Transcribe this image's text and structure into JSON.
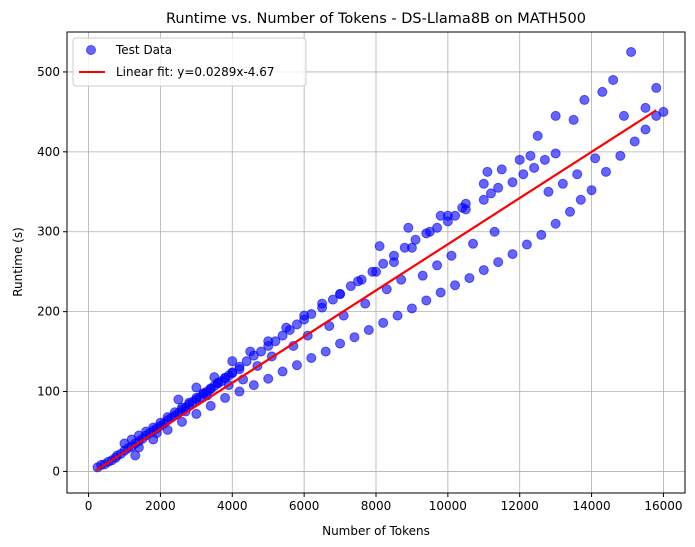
{
  "chart_data": {
    "type": "scatter",
    "title": "Runtime vs. Number of Tokens - DS-Llama8B on MATH500",
    "xlabel": "Number of Tokens",
    "ylabel": "Runtime (s)",
    "xlim": [
      -600,
      16600
    ],
    "ylim": [
      -27,
      550
    ],
    "xticks": [
      0,
      2000,
      4000,
      6000,
      8000,
      10000,
      12000,
      14000,
      16000
    ],
    "yticks": [
      0,
      100,
      200,
      300,
      400,
      500
    ],
    "grid": true,
    "legend_position": "top-left",
    "scatter_color": "#0000ff",
    "line_color": "#ff0000",
    "series": [
      {
        "name": "Test Data",
        "kind": "scatter",
        "points": [
          [
            250,
            5
          ],
          [
            350,
            8
          ],
          [
            450,
            9
          ],
          [
            550,
            12
          ],
          [
            650,
            14
          ],
          [
            750,
            17
          ],
          [
            800,
            20
          ],
          [
            900,
            22
          ],
          [
            1000,
            26
          ],
          [
            1100,
            29
          ],
          [
            1200,
            31
          ],
          [
            1300,
            35
          ],
          [
            1400,
            38
          ],
          [
            1500,
            41
          ],
          [
            1600,
            45
          ],
          [
            1700,
            48
          ],
          [
            1800,
            51
          ],
          [
            1900,
            54
          ],
          [
            2000,
            57
          ],
          [
            2100,
            60
          ],
          [
            2200,
            64
          ],
          [
            2300,
            67
          ],
          [
            2400,
            70
          ],
          [
            2500,
            73
          ],
          [
            2600,
            77
          ],
          [
            2700,
            80
          ],
          [
            2800,
            84
          ],
          [
            2900,
            87
          ],
          [
            3000,
            90
          ],
          [
            3100,
            93
          ],
          [
            3200,
            97
          ],
          [
            3300,
            100
          ],
          [
            3400,
            103
          ],
          [
            3500,
            107
          ],
          [
            3600,
            110
          ],
          [
            3700,
            113
          ],
          [
            3800,
            117
          ],
          [
            3900,
            120
          ],
          [
            4000,
            123
          ],
          [
            4200,
            128
          ],
          [
            1000,
            35
          ],
          [
            1200,
            40
          ],
          [
            1400,
            45
          ],
          [
            1600,
            50
          ],
          [
            1800,
            55
          ],
          [
            2000,
            61
          ],
          [
            2200,
            68
          ],
          [
            2400,
            74
          ],
          [
            2600,
            80
          ],
          [
            2800,
            86
          ],
          [
            3000,
            92
          ],
          [
            3200,
            98
          ],
          [
            3400,
            104
          ],
          [
            3600,
            111
          ],
          [
            3800,
            117
          ],
          [
            4000,
            124
          ],
          [
            4200,
            131
          ],
          [
            4400,
            138
          ],
          [
            4600,
            145
          ],
          [
            4800,
            150
          ],
          [
            5000,
            157
          ],
          [
            5200,
            163
          ],
          [
            5400,
            170
          ],
          [
            5600,
            177
          ],
          [
            5800,
            184
          ],
          [
            6000,
            190
          ],
          [
            6200,
            197
          ],
          [
            6500,
            205
          ],
          [
            6800,
            215
          ],
          [
            7000,
            222
          ],
          [
            7300,
            232
          ],
          [
            7600,
            240
          ],
          [
            7900,
            250
          ],
          [
            8200,
            260
          ],
          [
            8500,
            270
          ],
          [
            8800,
            280
          ],
          [
            9100,
            290
          ],
          [
            9400,
            298
          ],
          [
            9700,
            305
          ],
          [
            10000,
            313
          ],
          [
            10200,
            320
          ],
          [
            10500,
            328
          ],
          [
            11000,
            340
          ],
          [
            11200,
            348
          ],
          [
            11400,
            355
          ],
          [
            11800,
            362
          ],
          [
            12100,
            372
          ],
          [
            12400,
            380
          ],
          [
            12700,
            390
          ],
          [
            13000,
            398
          ],
          [
            1400,
            30
          ],
          [
            1800,
            40
          ],
          [
            2200,
            52
          ],
          [
            2600,
            62
          ],
          [
            3000,
            72
          ],
          [
            3400,
            82
          ],
          [
            3800,
            92
          ],
          [
            4200,
            100
          ],
          [
            4600,
            108
          ],
          [
            5000,
            116
          ],
          [
            5400,
            125
          ],
          [
            5800,
            133
          ],
          [
            6200,
            142
          ],
          [
            6600,
            150
          ],
          [
            7000,
            160
          ],
          [
            7400,
            168
          ],
          [
            7800,
            177
          ],
          [
            8200,
            186
          ],
          [
            8600,
            195
          ],
          [
            9000,
            204
          ],
          [
            9400,
            214
          ],
          [
            9800,
            224
          ],
          [
            10200,
            233
          ],
          [
            10600,
            242
          ],
          [
            11000,
            252
          ],
          [
            11400,
            262
          ],
          [
            11800,
            272
          ],
          [
            12200,
            284
          ],
          [
            12600,
            296
          ],
          [
            13000,
            310
          ],
          [
            13400,
            325
          ],
          [
            13700,
            340
          ],
          [
            14000,
            352
          ],
          [
            14400,
            375
          ],
          [
            14800,
            395
          ],
          [
            15200,
            413
          ],
          [
            15500,
            428
          ],
          [
            15800,
            445
          ],
          [
            16000,
            450
          ],
          [
            2500,
            90
          ],
          [
            3000,
            105
          ],
          [
            3500,
            118
          ],
          [
            4000,
            138
          ],
          [
            4500,
            150
          ],
          [
            5000,
            163
          ],
          [
            5500,
            180
          ],
          [
            6000,
            195
          ],
          [
            6500,
            210
          ],
          [
            7000,
            222
          ],
          [
            7500,
            238
          ],
          [
            8000,
            250
          ],
          [
            8500,
            262
          ],
          [
            9000,
            280
          ],
          [
            9500,
            300
          ],
          [
            10000,
            320
          ],
          [
            10500,
            335
          ],
          [
            11000,
            360
          ],
          [
            11500,
            378
          ],
          [
            12000,
            390
          ],
          [
            12500,
            420
          ],
          [
            13000,
            445
          ],
          [
            13500,
            440
          ],
          [
            13800,
            465
          ],
          [
            14300,
            475
          ],
          [
            14600,
            490
          ],
          [
            15100,
            525
          ],
          [
            15500,
            455
          ],
          [
            15800,
            480
          ],
          [
            14900,
            445
          ],
          [
            1300,
            20
          ],
          [
            1900,
            48
          ],
          [
            2700,
            75
          ],
          [
            3300,
            95
          ],
          [
            3900,
            108
          ],
          [
            4300,
            115
          ],
          [
            4700,
            132
          ],
          [
            5100,
            144
          ],
          [
            5700,
            157
          ],
          [
            6100,
            170
          ],
          [
            6700,
            182
          ],
          [
            7100,
            195
          ],
          [
            7700,
            210
          ],
          [
            8300,
            228
          ],
          [
            8700,
            240
          ],
          [
            9300,
            245
          ],
          [
            9700,
            258
          ],
          [
            10100,
            270
          ],
          [
            10700,
            285
          ],
          [
            11300,
            300
          ],
          [
            12800,
            350
          ],
          [
            13200,
            360
          ],
          [
            13600,
            372
          ],
          [
            14100,
            392
          ],
          [
            12300,
            395
          ],
          [
            11100,
            375
          ],
          [
            10400,
            330
          ],
          [
            9800,
            320
          ],
          [
            8900,
            305
          ],
          [
            8100,
            282
          ]
        ]
      },
      {
        "name": "Linear fit: y=0.0289x-4.67",
        "kind": "line",
        "slope": 0.0289,
        "intercept": -4.67,
        "x_range": [
          200,
          15800
        ]
      }
    ]
  }
}
